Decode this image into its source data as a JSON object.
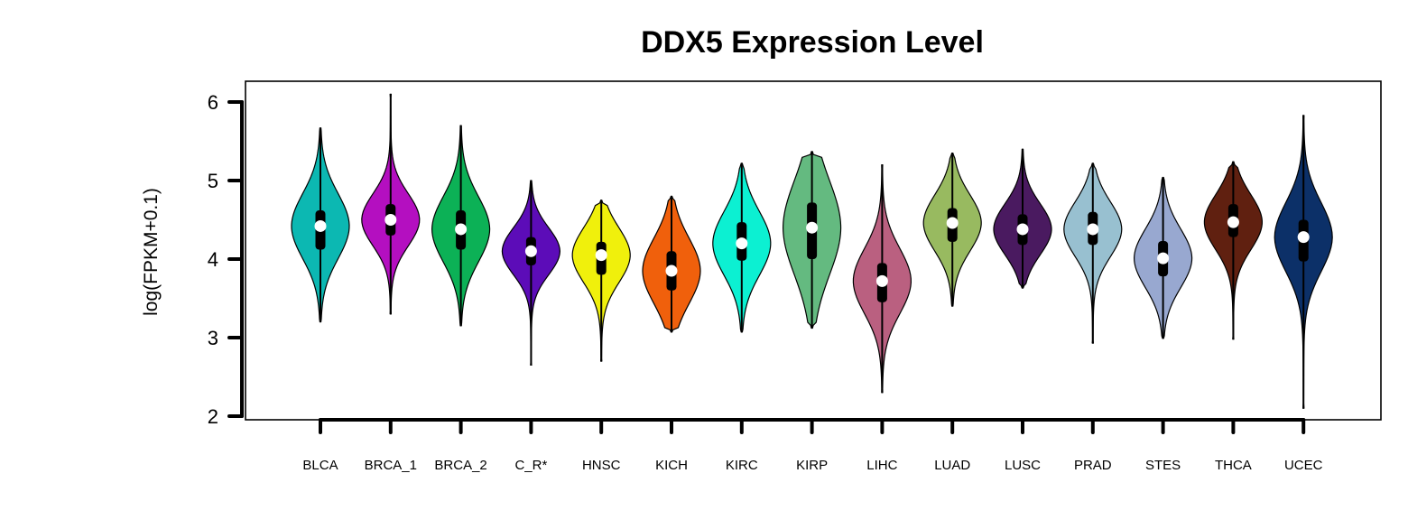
{
  "chart_data": {
    "type": "violin",
    "title": "DDX5 Expression Level",
    "xlabel": "",
    "ylabel": "log(FPKM+0.1)",
    "ylim": [
      2,
      6.2
    ],
    "yticks": [
      "2",
      "3",
      "4",
      "5",
      "6"
    ],
    "grid": false,
    "legend": "none",
    "categories": [
      "BLCA",
      "BRCA_1",
      "BRCA_2",
      "C_R*",
      "HNSC",
      "KICH",
      "KIRC",
      "KIRP",
      "LIHC",
      "LUAD",
      "LUSC",
      "PRAD",
      "STES",
      "THCA",
      "UCEC"
    ],
    "colors": [
      "#0cb8b2",
      "#b40fc0",
      "#0cb156",
      "#5c0cb8",
      "#f0f00c",
      "#f0600c",
      "#0cf0d2",
      "#64ba80",
      "#ba6080",
      "#98ba60",
      "#4a1a60",
      "#98c0d0",
      "#98a8d0",
      "#602010",
      "#0c3068"
    ],
    "series": [
      {
        "category": "BLCA",
        "min": 3.2,
        "max": 5.67,
        "q1": 4.12,
        "median": 4.42,
        "q3": 4.62
      },
      {
        "category": "BRCA_1",
        "min": 3.3,
        "max": 6.1,
        "q1": 4.3,
        "median": 4.5,
        "q3": 4.7
      },
      {
        "category": "BRCA_2",
        "min": 3.15,
        "max": 5.7,
        "q1": 4.12,
        "median": 4.38,
        "q3": 4.62
      },
      {
        "category": "C_R*",
        "min": 2.65,
        "max": 5.0,
        "q1": 3.92,
        "median": 4.1,
        "q3": 4.28
      },
      {
        "category": "HNSC",
        "min": 2.7,
        "max": 4.75,
        "q1": 3.8,
        "median": 4.05,
        "q3": 4.22
      },
      {
        "category": "KICH",
        "min": 3.07,
        "max": 4.8,
        "q1": 3.6,
        "median": 3.85,
        "q3": 4.1
      },
      {
        "category": "KIRC",
        "min": 3.07,
        "max": 5.22,
        "q1": 3.98,
        "median": 4.2,
        "q3": 4.47
      },
      {
        "category": "KIRP",
        "min": 3.12,
        "max": 5.37,
        "q1": 4.0,
        "median": 4.4,
        "q3": 4.72
      },
      {
        "category": "LIHC",
        "min": 2.3,
        "max": 5.2,
        "q1": 3.45,
        "median": 3.72,
        "q3": 3.95
      },
      {
        "category": "LUAD",
        "min": 3.4,
        "max": 5.35,
        "q1": 4.22,
        "median": 4.46,
        "q3": 4.65
      },
      {
        "category": "LUSC",
        "min": 3.63,
        "max": 5.4,
        "q1": 4.18,
        "median": 4.38,
        "q3": 4.57
      },
      {
        "category": "PRAD",
        "min": 2.93,
        "max": 5.22,
        "q1": 4.18,
        "median": 4.38,
        "q3": 4.6
      },
      {
        "category": "STES",
        "min": 2.99,
        "max": 5.04,
        "q1": 3.78,
        "median": 4.01,
        "q3": 4.23
      },
      {
        "category": "THCA",
        "min": 2.98,
        "max": 5.24,
        "q1": 4.28,
        "median": 4.47,
        "q3": 4.7
      },
      {
        "category": "UCEC",
        "min": 2.1,
        "max": 5.83,
        "q1": 3.97,
        "median": 4.28,
        "q3": 4.5
      }
    ]
  }
}
